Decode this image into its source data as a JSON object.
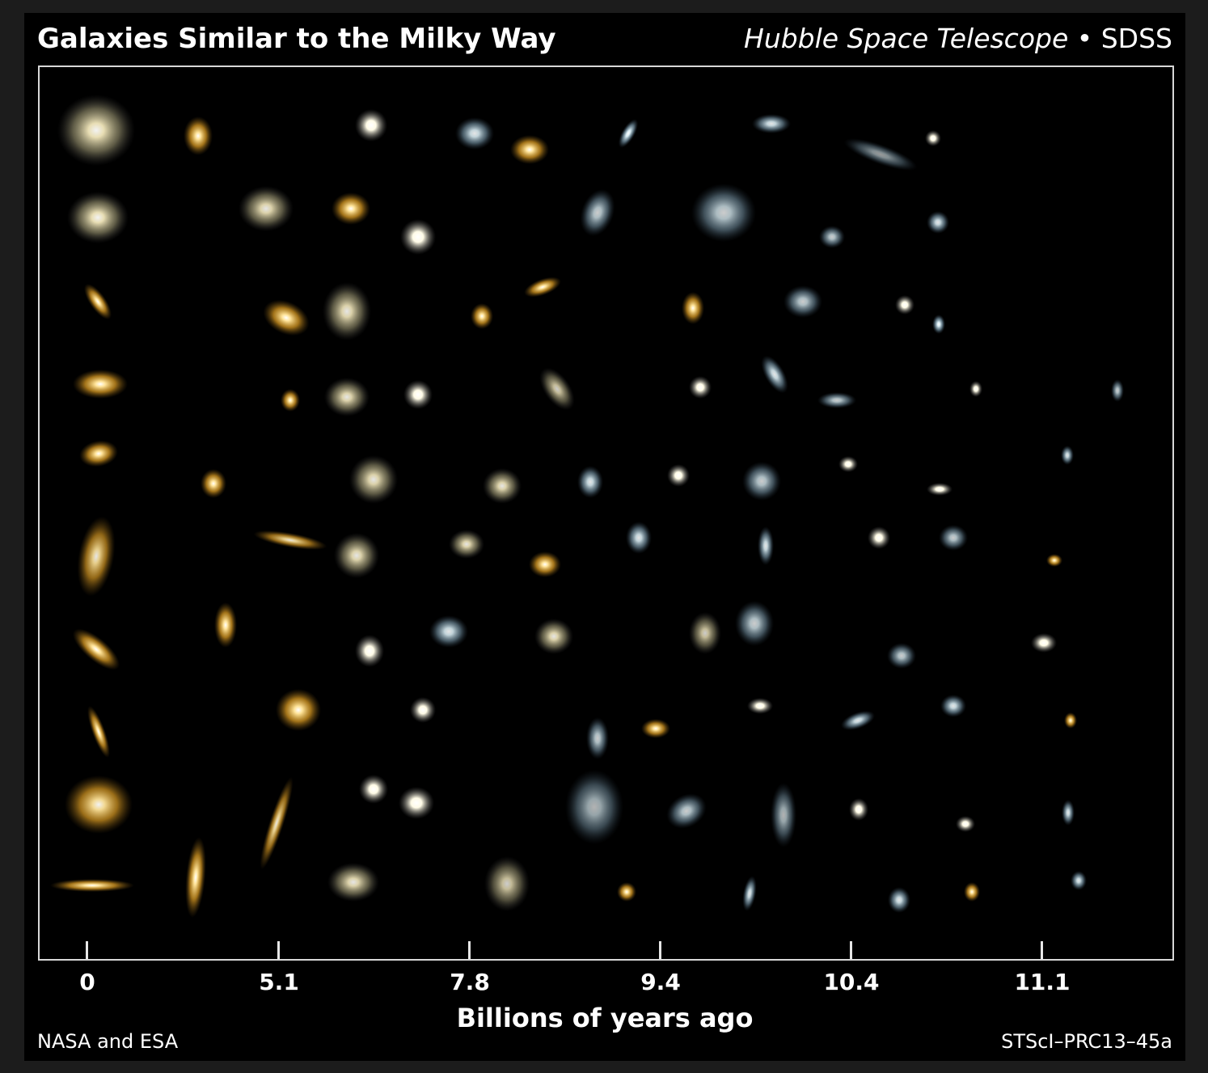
{
  "title": "Galaxies Similar to the Milky Way",
  "credit_italic": "Hubble Space Telescope",
  "credit_sep": " • ",
  "credit_plain": "SDSS",
  "axis": {
    "label": "Billions of years ago",
    "ticks": [
      "0",
      "5.1",
      "7.8",
      "9.4",
      "10.4",
      "11.1"
    ]
  },
  "footer": {
    "left": "NASA and ESA",
    "right": "STScI–PRC13–45a"
  },
  "colors": {
    "background": "#000000",
    "frame": "#d8d8d8",
    "near_galaxy": "#f2b23a",
    "far_galaxy": "#9ab8c8"
  }
}
